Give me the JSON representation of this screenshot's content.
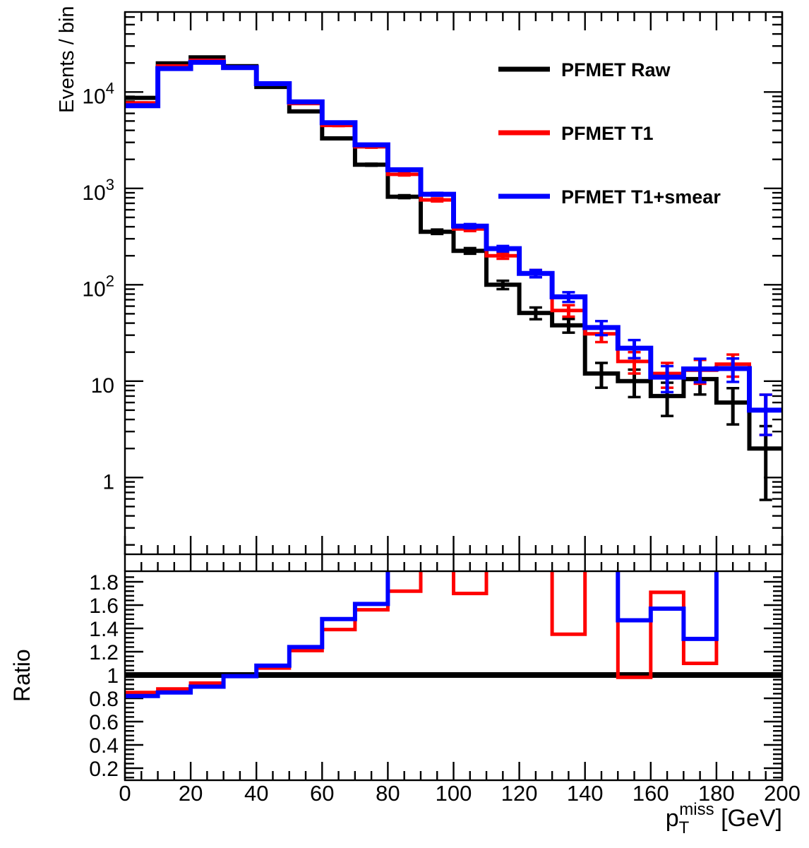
{
  "figure": {
    "legend": {
      "entries": [
        {
          "label": "PFMET Raw",
          "color": "#000000"
        },
        {
          "label": "PFMET T1",
          "color": "#ff0000"
        },
        {
          "label": "PFMET T1+smear",
          "color": "#0000ff"
        }
      ]
    },
    "x_axis": {
      "title_main": "p",
      "title_sub": "T",
      "title_sup": "miss",
      "title_rest": " [GeV]",
      "tick_labels": [
        "0",
        "20",
        "40",
        "60",
        "80",
        "100",
        "120",
        "140",
        "160",
        "180",
        "200"
      ]
    },
    "main_panel": {
      "ylabel": "Events / bin",
      "ytick_labels": [
        "1",
        "10",
        "10^2",
        "10^3",
        "10^4"
      ]
    },
    "ratio_panel": {
      "ylabel": "Ratio",
      "ytick_labels": [
        "0.2",
        "0.4",
        "0.6",
        "0.8",
        "1",
        "1.2",
        "1.4",
        "1.6",
        "1.8"
      ]
    }
  },
  "chart_data": [
    {
      "type": "line",
      "name": "met-distribution",
      "style": "step-histogram",
      "ylabel": "Events / bin",
      "xlabel": "p_T^miss [GeV]",
      "yscale": "log",
      "ylim": [
        0.16,
        66000
      ],
      "xlim": [
        0,
        200
      ],
      "bin_edges": [
        0,
        10,
        20,
        30,
        40,
        50,
        60,
        70,
        80,
        90,
        100,
        110,
        120,
        130,
        140,
        150,
        160,
        170,
        180,
        190,
        200
      ],
      "errors": "sqrt",
      "legend_position": "upper right",
      "series": [
        {
          "name": "PFMET Raw",
          "color": "#000000",
          "linewidth": 6,
          "values": [
            8700,
            19800,
            22900,
            18500,
            11300,
            6300,
            3300,
            1760,
            820,
            355,
            225,
            100,
            51,
            38,
            12,
            10,
            7,
            10.5,
            6,
            2
          ]
        },
        {
          "name": "PFMET T1",
          "color": "#ff0000",
          "linewidth": 5,
          "values": [
            7700,
            18600,
            21300,
            18100,
            12100,
            7600,
            4500,
            2700,
            1400,
            760,
            380,
            200,
            131,
            54,
            31,
            16,
            12,
            13,
            15,
            5
          ]
        },
        {
          "name": "PFMET T1+smear",
          "color": "#0000ff",
          "linewidth": 7,
          "values": [
            7200,
            17500,
            20300,
            17900,
            12200,
            7900,
            4800,
            2830,
            1560,
            870,
            406,
            237,
            131,
            75,
            36,
            22,
            11,
            13.4,
            13.5,
            5
          ]
        }
      ]
    },
    {
      "type": "line",
      "name": "ratio",
      "style": "step-histogram",
      "ylabel": "Ratio",
      "yscale": "linear",
      "ylim": [
        0.1,
        1.89
      ],
      "xlim": [
        0,
        200
      ],
      "bin_edges": [
        0,
        10,
        20,
        30,
        40,
        50,
        60,
        70,
        80,
        90,
        100,
        110,
        120,
        130,
        140,
        150,
        160,
        170,
        180,
        190,
        200
      ],
      "reference_line": 1.0,
      "note": "null means value above the visible axis range (line clipped at top)",
      "series": [
        {
          "name": "PFMET T1 / Raw",
          "color": "#ff0000",
          "linewidth": 5,
          "values": [
            0.85,
            0.88,
            0.93,
            0.99,
            1.06,
            1.21,
            1.39,
            1.56,
            1.72,
            null,
            1.7,
            null,
            null,
            1.35,
            null,
            0.98,
            1.71,
            1.1,
            null,
            null
          ]
        },
        {
          "name": "PFMET T1+smear / Raw",
          "color": "#0000ff",
          "linewidth": 6,
          "values": [
            0.82,
            0.85,
            0.9,
            0.99,
            1.08,
            1.24,
            1.48,
            1.61,
            null,
            null,
            null,
            null,
            null,
            null,
            null,
            1.47,
            1.57,
            1.31,
            null,
            null
          ]
        }
      ]
    }
  ]
}
